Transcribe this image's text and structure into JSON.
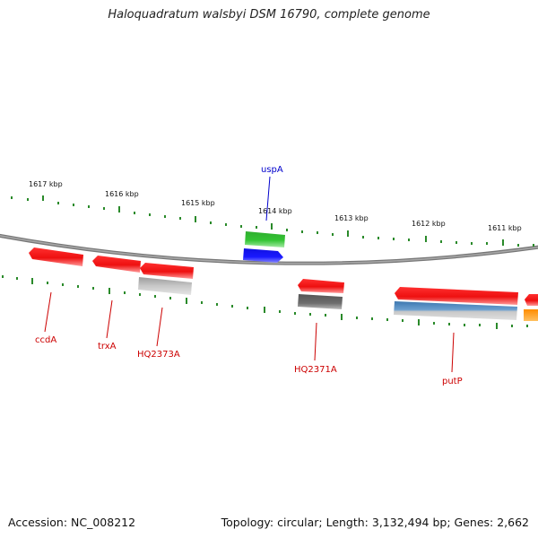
{
  "title": "Haloquadratum walsbyi DSM 16790, complete genome",
  "footer": {
    "accession": "Accession: NC_008212",
    "summary": "Topology: circular; Length: 3,132,494 bp; Genes: 2,662"
  },
  "colors": {
    "backbone": "#8a8a8a",
    "tick": "#2a8a2a",
    "red_feature": "#e81c1c",
    "green_feature": "#33bb33",
    "blue_feature": "#1a1aee",
    "gray_feature": "#b0b0b0",
    "darkgray_feature": "#666666",
    "steelblue_feature": "#5a8fc0",
    "orange_feature": "#ff9a00",
    "red_label": "#cc0000",
    "blue_label": "#0000cc"
  },
  "kbp_labels": [
    "1617 kbp",
    "1616 kbp",
    "1615 kbp",
    "1614 kbp",
    "1613 kbp",
    "1612 kbp",
    "1611 kbp"
  ],
  "gene_labels": [
    {
      "text": "ccdA",
      "color": "red"
    },
    {
      "text": "trxA",
      "color": "red"
    },
    {
      "text": "HQ2373A",
      "color": "red"
    },
    {
      "text": "uspA",
      "color": "blue"
    },
    {
      "text": "HQ2371A",
      "color": "red"
    },
    {
      "text": "putP",
      "color": "red"
    }
  ]
}
